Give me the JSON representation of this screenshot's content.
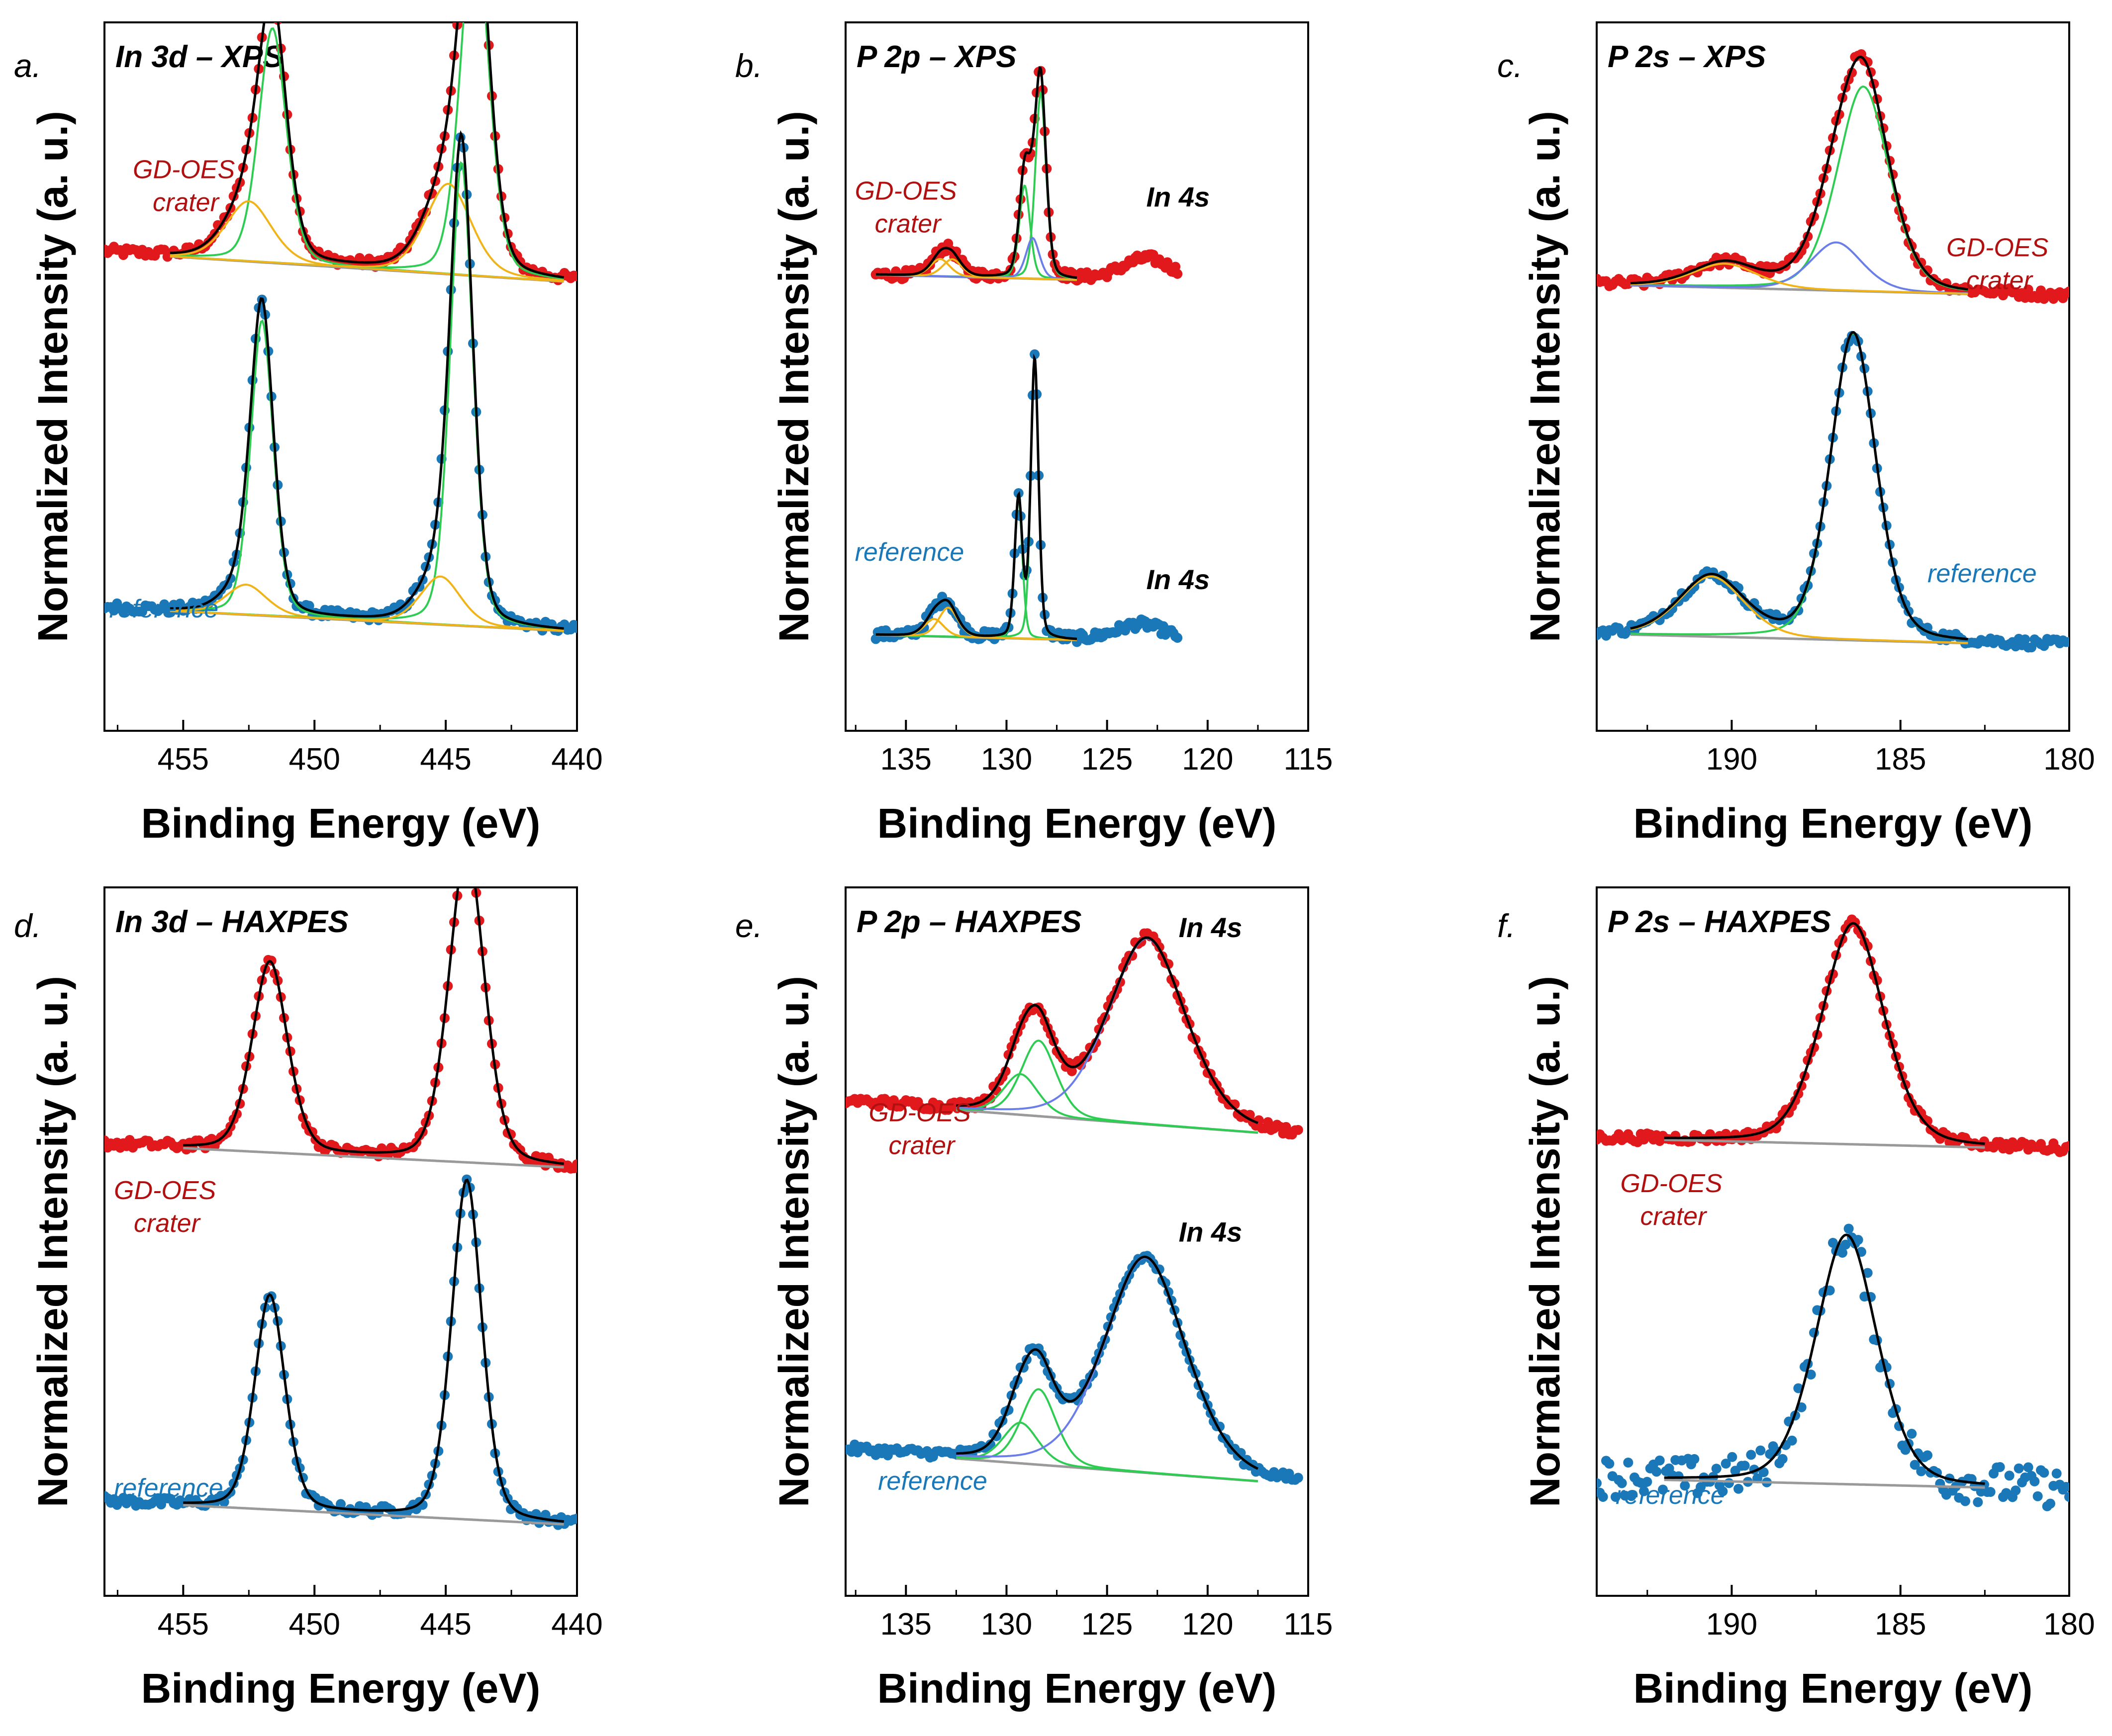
{
  "colors": {
    "crater": "#e2191c",
    "reference": "#1a78b8",
    "fit": "#000000",
    "background": "#9a9a9a",
    "comp_green": "#2ecc52",
    "comp_orange": "#f0b418",
    "comp_blue": "#6b7ee8",
    "crater_label": "#b01010",
    "reference_label": "#1a78b8"
  },
  "chart_data": [
    {
      "type": "line",
      "panel": "a.",
      "title": "In 3d – XPS",
      "xlabel": "Binding Energy (eV)",
      "ylabel": "Normalized Intensity (a. u.)",
      "xlim": [
        458,
        440
      ],
      "xticks": [
        "455",
        "450",
        "445",
        "440"
      ],
      "series": [
        {
          "name": "GD-OES crater",
          "label_lines": [
            "GD-OES",
            "crater"
          ],
          "offset": 0.58,
          "xrange": [
            458,
            440
          ],
          "fit_range": [
            455.5,
            440.5
          ],
          "bg": [
            0.05,
            0.0
          ],
          "peaks": [
            {
              "c": 451.6,
              "h": 0.39,
              "w": 0.55,
              "color": "comp_green"
            },
            {
              "c": 452.5,
              "h": 0.1,
              "w": 0.9,
              "color": "comp_orange"
            },
            {
              "c": 443.9,
              "h": 0.6,
              "w": 0.55,
              "color": "comp_green"
            },
            {
              "c": 444.9,
              "h": 0.15,
              "w": 0.9,
              "color": "comp_orange"
            }
          ],
          "annotation": ""
        },
        {
          "name": "reference",
          "label_lines": [
            "reference"
          ],
          "offset": 0.0,
          "xrange": [
            458,
            440
          ],
          "fit_range": [
            455.5,
            440.5
          ],
          "bg": [
            0.04,
            0.0
          ],
          "peaks": [
            {
              "c": 452.0,
              "h": 0.49,
              "w": 0.45,
              "color": "comp_green"
            },
            {
              "c": 452.6,
              "h": 0.05,
              "w": 0.8,
              "color": "comp_orange"
            },
            {
              "c": 444.4,
              "h": 0.77,
              "w": 0.45,
              "color": "comp_green"
            },
            {
              "c": 445.2,
              "h": 0.08,
              "w": 0.8,
              "color": "comp_orange"
            }
          ],
          "annotation": ""
        }
      ]
    },
    {
      "type": "line",
      "panel": "b.",
      "title": "P 2p – XPS",
      "xlabel": "Binding Energy (eV)",
      "ylabel": "Normalized Intensity (a. u.)",
      "xlim": [
        138,
        115
      ],
      "xticks": [
        "135",
        "130",
        "125",
        "120",
        "115"
      ],
      "series": [
        {
          "name": "GD-OES crater",
          "label_lines": [
            "GD-OES",
            "crater"
          ],
          "offset": 0.62,
          "xrange": [
            136.5,
            121.5
          ],
          "fit_range": [
            136.5,
            126.5
          ],
          "bg": [
            0.02,
            0.0
          ],
          "peaks": [
            {
              "c": 129.1,
              "h": 0.16,
              "w": 0.28,
              "color": "comp_green"
            },
            {
              "c": 128.3,
              "h": 0.32,
              "w": 0.28,
              "color": "comp_green"
            },
            {
              "c": 128.7,
              "h": 0.07,
              "w": 0.35,
              "color": "comp_blue"
            },
            {
              "c": 133.3,
              "h": 0.03,
              "w": 0.5,
              "color": "comp_orange"
            },
            {
              "c": 132.7,
              "h": 0.03,
              "w": 0.5,
              "color": "comp_orange"
            },
            {
              "c": 123.0,
              "h": 0.04,
              "w": 1.3,
              "color": "none"
            }
          ],
          "annotation": "In 4s"
        },
        {
          "name": "reference",
          "label_lines": [
            "reference"
          ],
          "offset": 0.0,
          "xrange": [
            136.5,
            121.5
          ],
          "fit_range": [
            136.5,
            126.5
          ],
          "bg": [
            0.02,
            0.0
          ],
          "peaks": [
            {
              "c": 129.4,
              "h": 0.24,
              "w": 0.2,
              "color": "comp_green"
            },
            {
              "c": 128.6,
              "h": 0.48,
              "w": 0.2,
              "color": "comp_green"
            },
            {
              "c": 133.6,
              "h": 0.03,
              "w": 0.5,
              "color": "comp_orange"
            },
            {
              "c": 132.9,
              "h": 0.05,
              "w": 0.5,
              "color": "comp_orange"
            },
            {
              "c": 123.3,
              "h": 0.03,
              "w": 1.3,
              "color": "none"
            }
          ],
          "annotation": "In 4s"
        }
      ]
    },
    {
      "type": "line",
      "panel": "c.",
      "title": "P 2s – XPS",
      "xlabel": "Binding Energy (eV)",
      "ylabel": "Normalized Intensity (a. u.)",
      "xlim": [
        194,
        180
      ],
      "xticks": [
        "190",
        "185",
        "180"
      ],
      "series": [
        {
          "name": "GD-OES crater",
          "label_lines": [
            "GD-OES",
            "crater"
          ],
          "offset": 0.58,
          "xrange": [
            194,
            180
          ],
          "fit_range": [
            193,
            183
          ],
          "bg": [
            0.02,
            0.0
          ],
          "peaks": [
            {
              "c": 186.1,
              "h": 0.34,
              "w": 0.8,
              "color": "comp_green"
            },
            {
              "c": 186.9,
              "h": 0.08,
              "w": 0.8,
              "color": "comp_blue"
            },
            {
              "c": 190.2,
              "h": 0.04,
              "w": 1.0,
              "color": "comp_orange"
            }
          ],
          "annotation": ""
        },
        {
          "name": "reference",
          "label_lines": [
            "reference"
          ],
          "offset": 0.0,
          "xrange": [
            194,
            180
          ],
          "fit_range": [
            193,
            183
          ],
          "bg": [
            0.02,
            0.0
          ],
          "peaks": [
            {
              "c": 186.4,
              "h": 0.51,
              "w": 0.7,
              "color": "comp_green"
            },
            {
              "c": 190.6,
              "h": 0.1,
              "w": 1.0,
              "color": "comp_orange"
            }
          ],
          "annotation": ""
        }
      ]
    },
    {
      "type": "line",
      "panel": "d.",
      "title": "In 3d – HAXPES",
      "xlabel": "Binding Energy (eV)",
      "ylabel": "Normalized Intensity (a. u.)",
      "xlim": [
        458,
        440
      ],
      "xticks": [
        "455",
        "450",
        "445",
        "440"
      ],
      "series": [
        {
          "name": "GD-OES crater",
          "label_lines": [
            "GD-OES",
            "crater"
          ],
          "offset": 0.6,
          "xrange": [
            458,
            440
          ],
          "fit_range": [
            455,
            440.5
          ],
          "bg": [
            0.04,
            0.0
          ],
          "peaks": [
            {
              "c": 451.7,
              "h": 0.32,
              "w": 0.7,
              "color": "fit_only"
            },
            {
              "c": 444.2,
              "h": 0.53,
              "w": 0.7,
              "color": "fit_only"
            }
          ],
          "annotation": ""
        },
        {
          "name": "reference",
          "label_lines": [
            "reference"
          ],
          "offset": 0.0,
          "xrange": [
            458,
            440
          ],
          "fit_range": [
            455,
            440.5
          ],
          "bg": [
            0.04,
            0.0
          ],
          "peaks": [
            {
              "c": 451.7,
              "h": 0.36,
              "w": 0.6,
              "color": "fit_only"
            },
            {
              "c": 444.2,
              "h": 0.57,
              "w": 0.6,
              "color": "fit_only"
            }
          ],
          "annotation": ""
        }
      ]
    },
    {
      "type": "line",
      "panel": "e.",
      "title": "P 2p – HAXPES",
      "xlabel": "Binding Energy (eV)",
      "ylabel": "Normalized Intensity (a. u.)",
      "xlim": [
        138,
        115
      ],
      "xticks": [
        "135",
        "130",
        "125",
        "120",
        "115"
      ],
      "series": [
        {
          "name": "GD-OES crater",
          "label_lines": [
            "GD-OES",
            "crater"
          ],
          "offset": 0.6,
          "xrange": [
            138,
            115.5
          ],
          "fit_range": [
            132.5,
            117.5
          ],
          "bg": [
            0.08,
            0.02
          ],
          "peaks": [
            {
              "c": 129.3,
              "h": 0.07,
              "w": 0.9,
              "color": "comp_green"
            },
            {
              "c": 128.4,
              "h": 0.13,
              "w": 0.9,
              "color": "comp_green"
            },
            {
              "c": 123.0,
              "h": 0.32,
              "w": 2.0,
              "color": "comp_blue"
            }
          ],
          "annotation": "In 4s"
        },
        {
          "name": "reference",
          "label_lines": [
            "reference"
          ],
          "offset": 0.0,
          "xrange": [
            138,
            115.5
          ],
          "fit_range": [
            132.5,
            117.5
          ],
          "bg": [
            0.08,
            0.02
          ],
          "peaks": [
            {
              "c": 129.3,
              "h": 0.07,
              "w": 0.9,
              "color": "comp_green"
            },
            {
              "c": 128.4,
              "h": 0.13,
              "w": 0.9,
              "color": "comp_green"
            },
            {
              "c": 123.1,
              "h": 0.37,
              "w": 2.1,
              "color": "comp_blue"
            }
          ],
          "annotation": "In 4s"
        }
      ]
    },
    {
      "type": "line",
      "panel": "f.",
      "title": "P 2s – HAXPES",
      "xlabel": "Binding Energy (eV)",
      "ylabel": "Normalized Intensity (a. u.)",
      "xlim": [
        194,
        180
      ],
      "xticks": [
        "190",
        "185",
        "180"
      ],
      "series": [
        {
          "name": "GD-OES crater",
          "label_lines": [
            "GD-OES",
            "crater"
          ],
          "offset": 0.6,
          "xrange": [
            194,
            180
          ],
          "fit_range": [
            192,
            182.5
          ],
          "bg": [
            0.02,
            0.0
          ],
          "peaks": [
            {
              "c": 186.4,
              "h": 0.39,
              "w": 0.95,
              "color": "fit_only"
            }
          ],
          "annotation": ""
        },
        {
          "name": "reference",
          "label_lines": [
            "reference"
          ],
          "offset": 0.0,
          "xrange": [
            194,
            180
          ],
          "fit_range": [
            192,
            182.5
          ],
          "bg": [
            0.02,
            0.0
          ],
          "peaks": [
            {
              "c": 186.6,
              "h": 0.44,
              "w": 0.95,
              "color": "fit_only"
            }
          ],
          "annotation": ""
        }
      ]
    }
  ]
}
